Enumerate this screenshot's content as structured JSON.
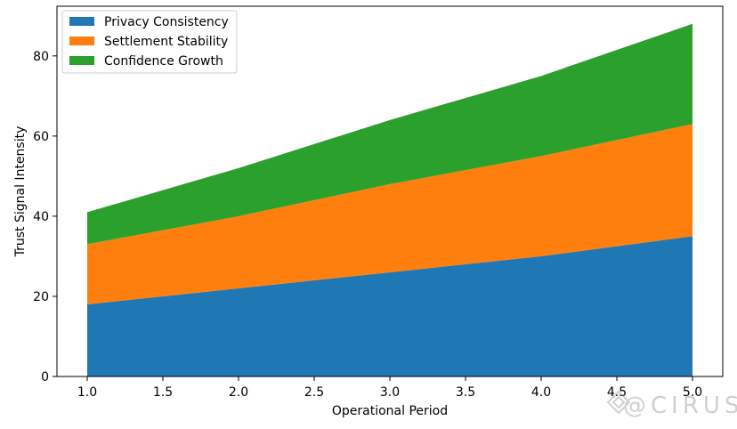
{
  "chart_data": {
    "type": "area",
    "stacked": true,
    "title": "",
    "xlabel": "Operational Period",
    "ylabel": "Trust Signal Intensity",
    "x": [
      1,
      2,
      3,
      4,
      5
    ],
    "series": [
      {
        "name": "Privacy Consistency",
        "values": [
          18,
          22,
          26,
          30,
          35
        ],
        "color": "#1f77b4"
      },
      {
        "name": "Settlement Stability",
        "values": [
          15,
          18,
          22,
          25,
          28
        ],
        "color": "#ff7f0e"
      },
      {
        "name": "Confidence Growth",
        "values": [
          8,
          12,
          16,
          20,
          25
        ],
        "color": "#2ca02c"
      }
    ],
    "xlim": [
      0.8,
      5.2
    ],
    "ylim": [
      0,
      92.4
    ],
    "xticks": [
      "1.0",
      "1.5",
      "2.0",
      "2.5",
      "3.0",
      "3.5",
      "4.0",
      "4.5",
      "5.0"
    ],
    "yticks": [
      "0",
      "20",
      "40",
      "60",
      "80"
    ],
    "grid": false,
    "legend_position": "top-left"
  },
  "watermark": "@CIRUS"
}
